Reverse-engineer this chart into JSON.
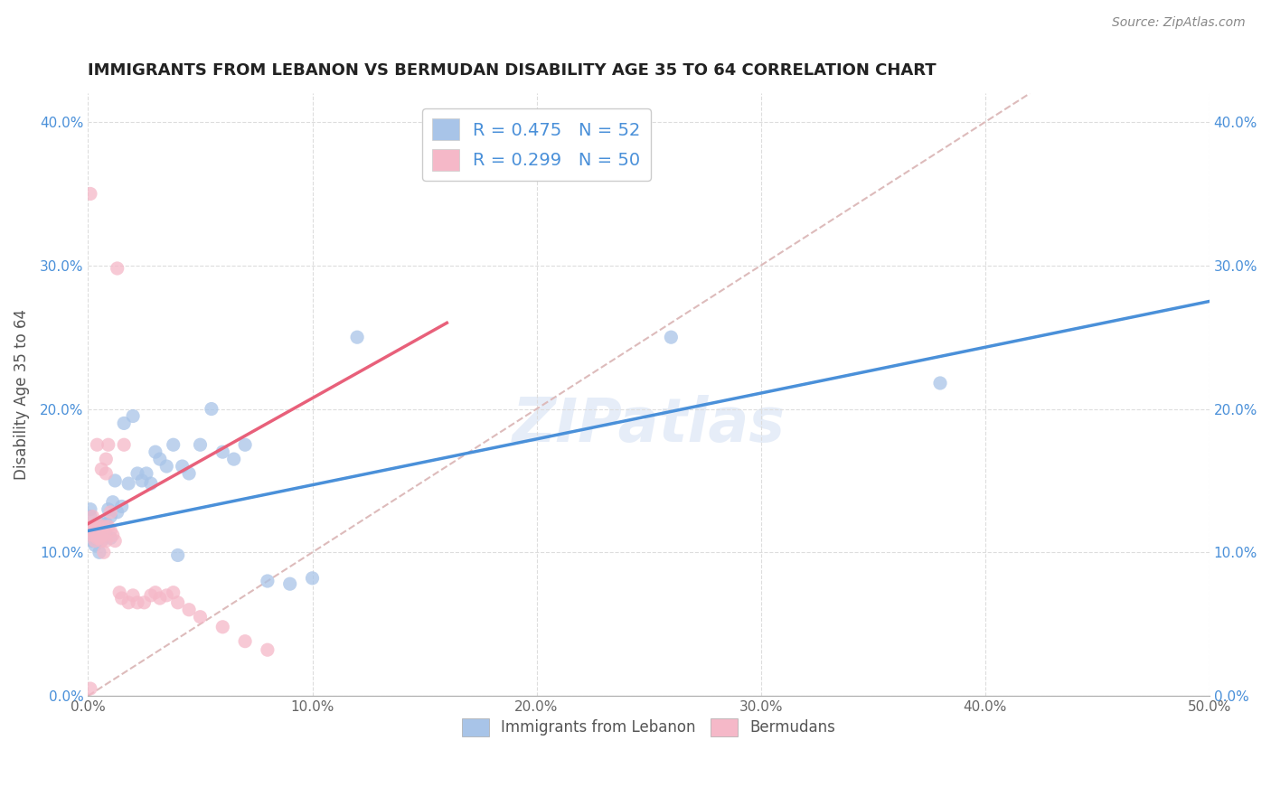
{
  "title": "IMMIGRANTS FROM LEBANON VS BERMUDAN DISABILITY AGE 35 TO 64 CORRELATION CHART",
  "source": "Source: ZipAtlas.com",
  "ylabel": "Disability Age 35 to 64",
  "xlabel_bottom": [
    "Immigrants from Lebanon",
    "Bermudans"
  ],
  "xlim": [
    0.0,
    0.5
  ],
  "ylim": [
    0.0,
    0.42
  ],
  "lebanon_R": 0.475,
  "lebanon_N": 52,
  "bermuda_R": 0.299,
  "bermuda_N": 50,
  "lebanon_color": "#a8c4e8",
  "bermuda_color": "#f5b8c8",
  "trendline_lebanon_color": "#4a90d9",
  "trendline_bermuda_color": "#e8607a",
  "diagonal_color": "#ddbbbb",
  "lebanon_points_x": [
    0.001,
    0.001,
    0.002,
    0.002,
    0.003,
    0.003,
    0.003,
    0.004,
    0.004,
    0.004,
    0.005,
    0.005,
    0.005,
    0.006,
    0.006,
    0.006,
    0.007,
    0.007,
    0.008,
    0.008,
    0.009,
    0.01,
    0.01,
    0.011,
    0.012,
    0.013,
    0.015,
    0.016,
    0.018,
    0.02,
    0.022,
    0.024,
    0.026,
    0.028,
    0.03,
    0.032,
    0.035,
    0.038,
    0.04,
    0.042,
    0.045,
    0.05,
    0.055,
    0.06,
    0.065,
    0.07,
    0.08,
    0.09,
    0.1,
    0.12,
    0.26,
    0.38
  ],
  "lebanon_points_y": [
    0.125,
    0.13,
    0.118,
    0.108,
    0.112,
    0.105,
    0.115,
    0.11,
    0.118,
    0.108,
    0.115,
    0.11,
    0.1,
    0.115,
    0.108,
    0.12,
    0.118,
    0.112,
    0.12,
    0.112,
    0.13,
    0.125,
    0.11,
    0.135,
    0.15,
    0.128,
    0.132,
    0.19,
    0.148,
    0.195,
    0.155,
    0.15,
    0.155,
    0.148,
    0.17,
    0.165,
    0.16,
    0.175,
    0.098,
    0.16,
    0.155,
    0.175,
    0.2,
    0.17,
    0.165,
    0.175,
    0.08,
    0.078,
    0.082,
    0.25,
    0.25,
    0.218
  ],
  "bermuda_points_x": [
    0.001,
    0.001,
    0.001,
    0.002,
    0.002,
    0.002,
    0.003,
    0.003,
    0.003,
    0.004,
    0.004,
    0.004,
    0.005,
    0.005,
    0.005,
    0.006,
    0.006,
    0.006,
    0.007,
    0.007,
    0.007,
    0.008,
    0.008,
    0.008,
    0.009,
    0.009,
    0.01,
    0.01,
    0.011,
    0.012,
    0.013,
    0.014,
    0.015,
    0.016,
    0.018,
    0.02,
    0.022,
    0.025,
    0.028,
    0.03,
    0.032,
    0.035,
    0.038,
    0.04,
    0.045,
    0.05,
    0.06,
    0.07,
    0.08,
    0.001
  ],
  "bermuda_points_y": [
    0.35,
    0.118,
    0.115,
    0.125,
    0.118,
    0.112,
    0.115,
    0.118,
    0.108,
    0.175,
    0.12,
    0.11,
    0.11,
    0.115,
    0.115,
    0.108,
    0.158,
    0.112,
    0.112,
    0.118,
    0.1,
    0.155,
    0.165,
    0.108,
    0.175,
    0.118,
    0.115,
    0.128,
    0.112,
    0.108,
    0.298,
    0.072,
    0.068,
    0.175,
    0.065,
    0.07,
    0.065,
    0.065,
    0.07,
    0.072,
    0.068,
    0.07,
    0.072,
    0.065,
    0.06,
    0.055,
    0.048,
    0.038,
    0.032,
    0.005
  ],
  "lebanon_trendline_x0": 0.0,
  "lebanon_trendline_y0": 0.115,
  "lebanon_trendline_x1": 0.5,
  "lebanon_trendline_y1": 0.275,
  "bermuda_trendline_x0": 0.0,
  "bermuda_trendline_y0": 0.12,
  "bermuda_trendline_x1": 0.16,
  "bermuda_trendline_y1": 0.26
}
